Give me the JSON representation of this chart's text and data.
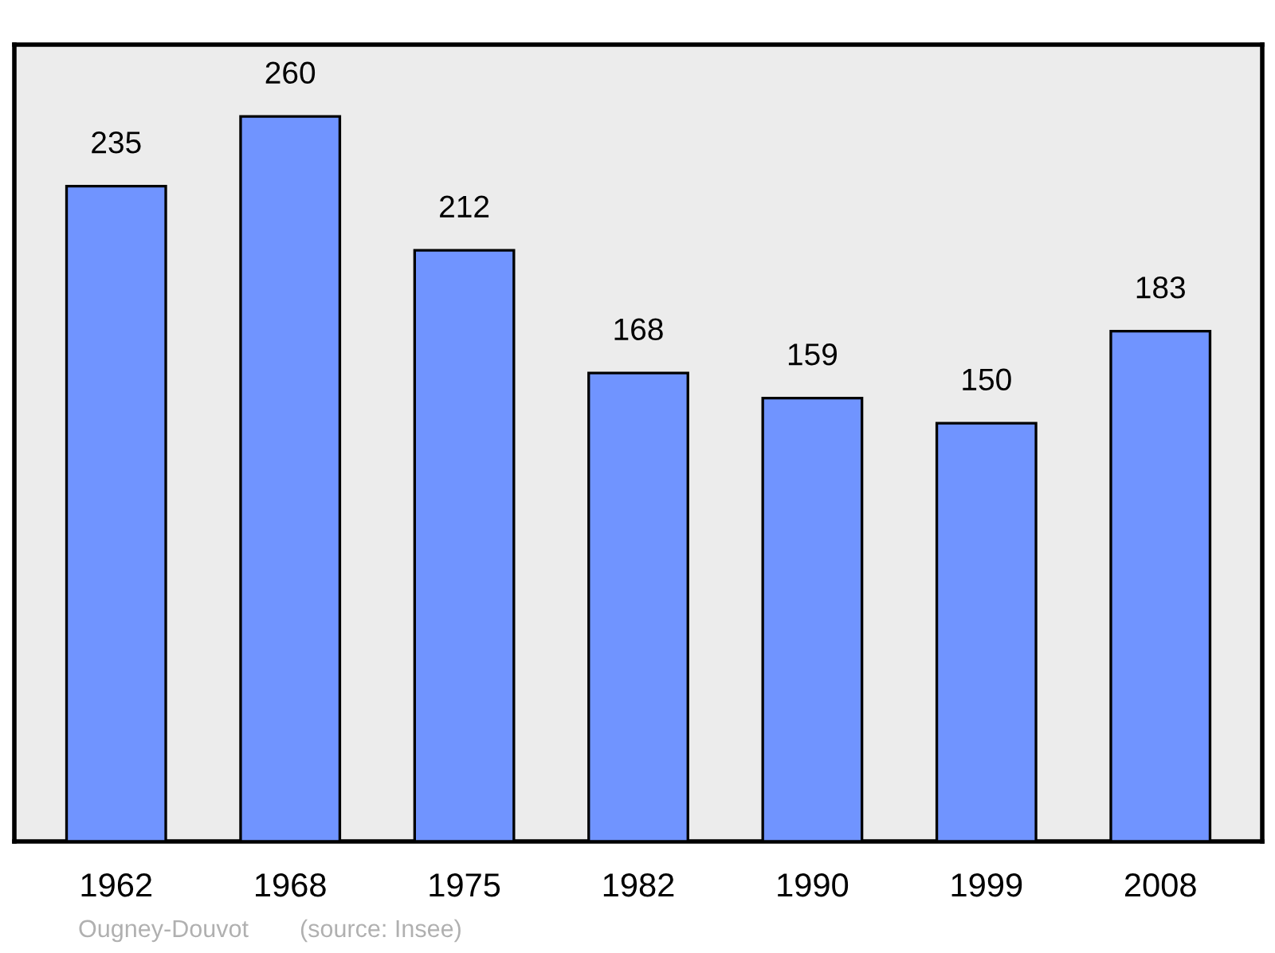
{
  "chart_data": {
    "type": "bar",
    "categories": [
      "1962",
      "1968",
      "1975",
      "1982",
      "1990",
      "1999",
      "2008"
    ],
    "values": [
      235,
      260,
      212,
      168,
      159,
      150,
      183
    ],
    "color": "#7094ff",
    "data_labels": true,
    "grid": false,
    "legend": false,
    "tick_labels": "x",
    "annotations": [
      "Ougney-Douvot",
      "(source: Insee)"
    ]
  }
}
